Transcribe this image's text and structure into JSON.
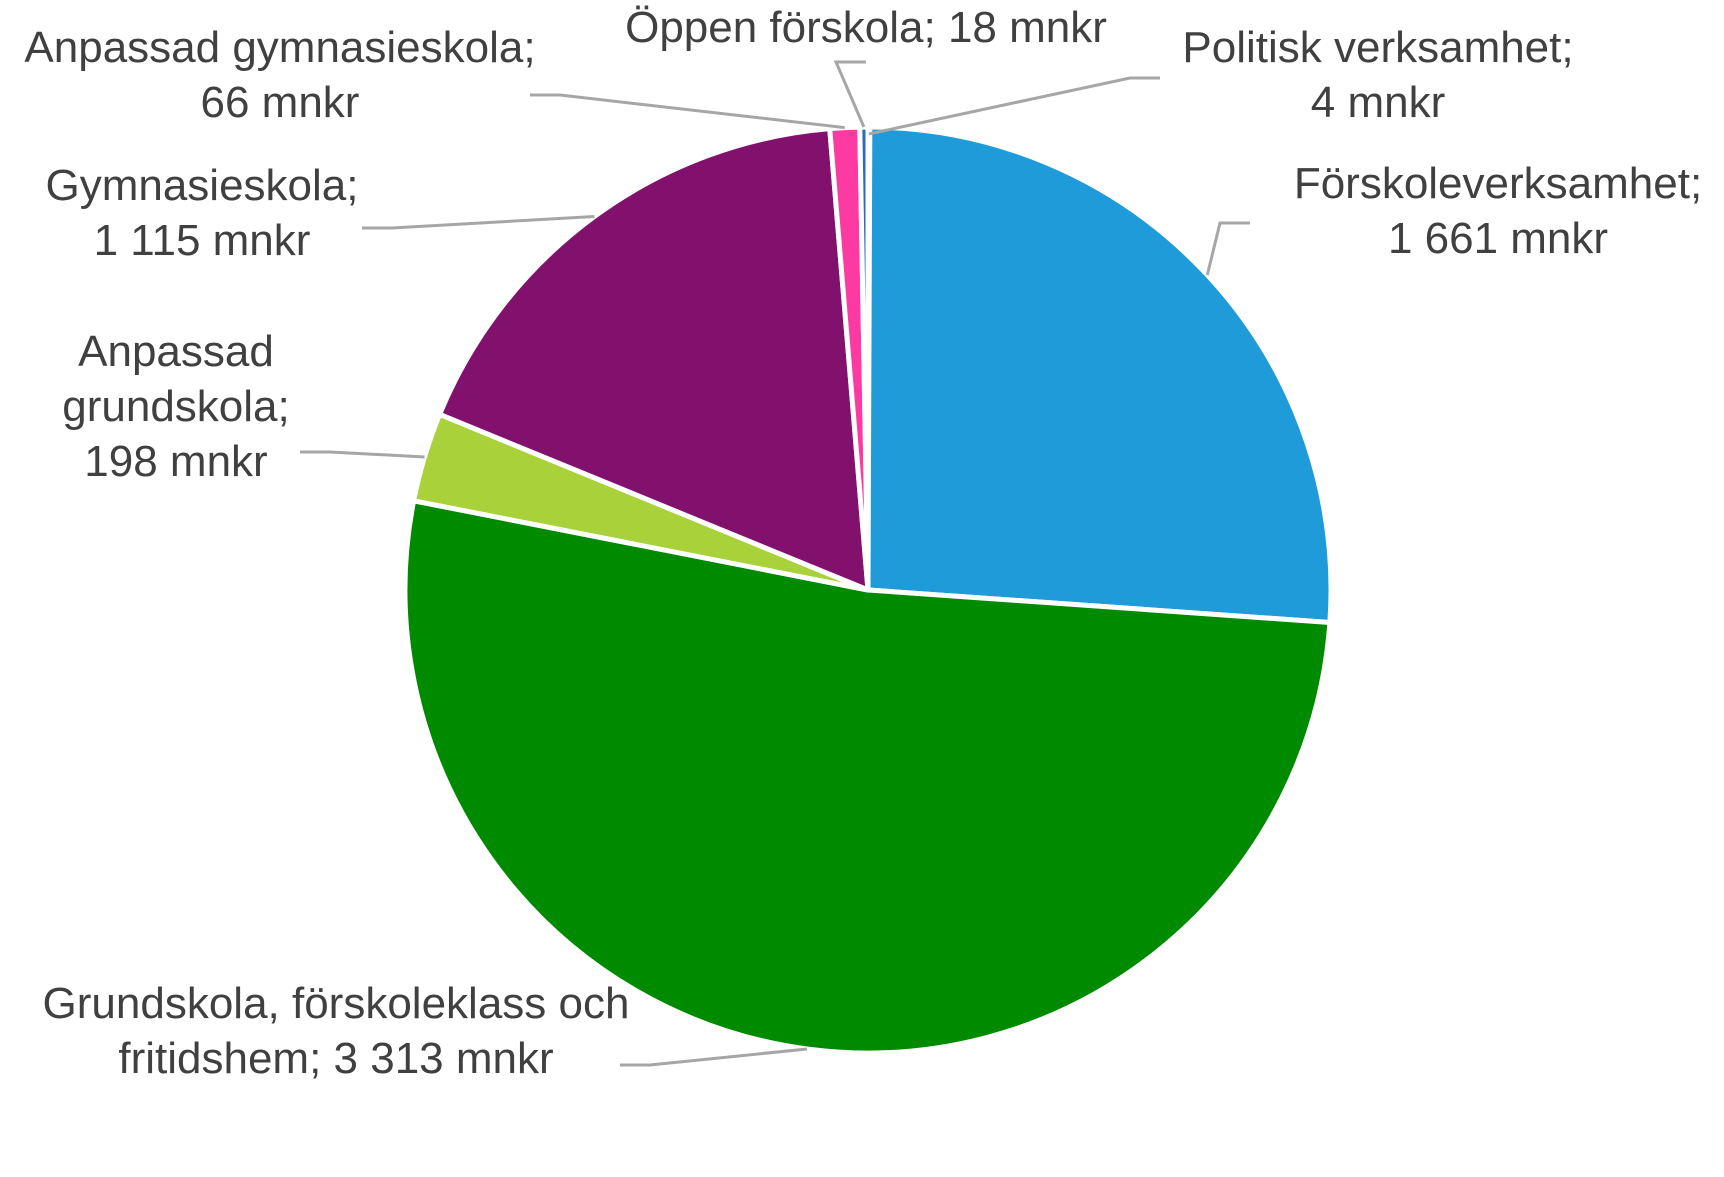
{
  "chart_data": {
    "type": "pie",
    "title": "",
    "unit": "mnkr",
    "slices": [
      {
        "name": "Politisk verksamhet",
        "value": 4,
        "label_lines": [
          "Politisk verksamhet;",
          "4 mnkr"
        ],
        "color": "#808080"
      },
      {
        "name": "Förskoleverksamhet",
        "value": 1661,
        "label_lines": [
          "Förskoleverksamhet;",
          "1 661 mnkr"
        ],
        "color": "#1f9bd9"
      },
      {
        "name": "Grundskola, förskoleklass och fritidshem",
        "value": 3313,
        "label_lines": [
          "Grundskola, förskoleklass och",
          "fritidshem; 3 313 mnkr"
        ],
        "color": "#008a00"
      },
      {
        "name": "Anpassad grundskola",
        "value": 198,
        "label_lines": [
          "Anpassad",
          "grundskola;",
          "198 mnkr"
        ],
        "color": "#a8d13a"
      },
      {
        "name": "Gymnasieskola",
        "value": 1115,
        "label_lines": [
          "Gymnasieskola;",
          "1 115 mnkr"
        ],
        "color": "#82116e"
      },
      {
        "name": "Anpassad gymnasieskola",
        "value": 66,
        "label_lines": [
          "Anpassad gymnasieskola;",
          "66 mnkr"
        ],
        "color": "#fd3aa2"
      },
      {
        "name": "Öppen förskola",
        "value": 18,
        "label_lines": [
          "Öppen förskola; 18 mnkr"
        ],
        "color": "#2c6bb5"
      }
    ]
  }
}
